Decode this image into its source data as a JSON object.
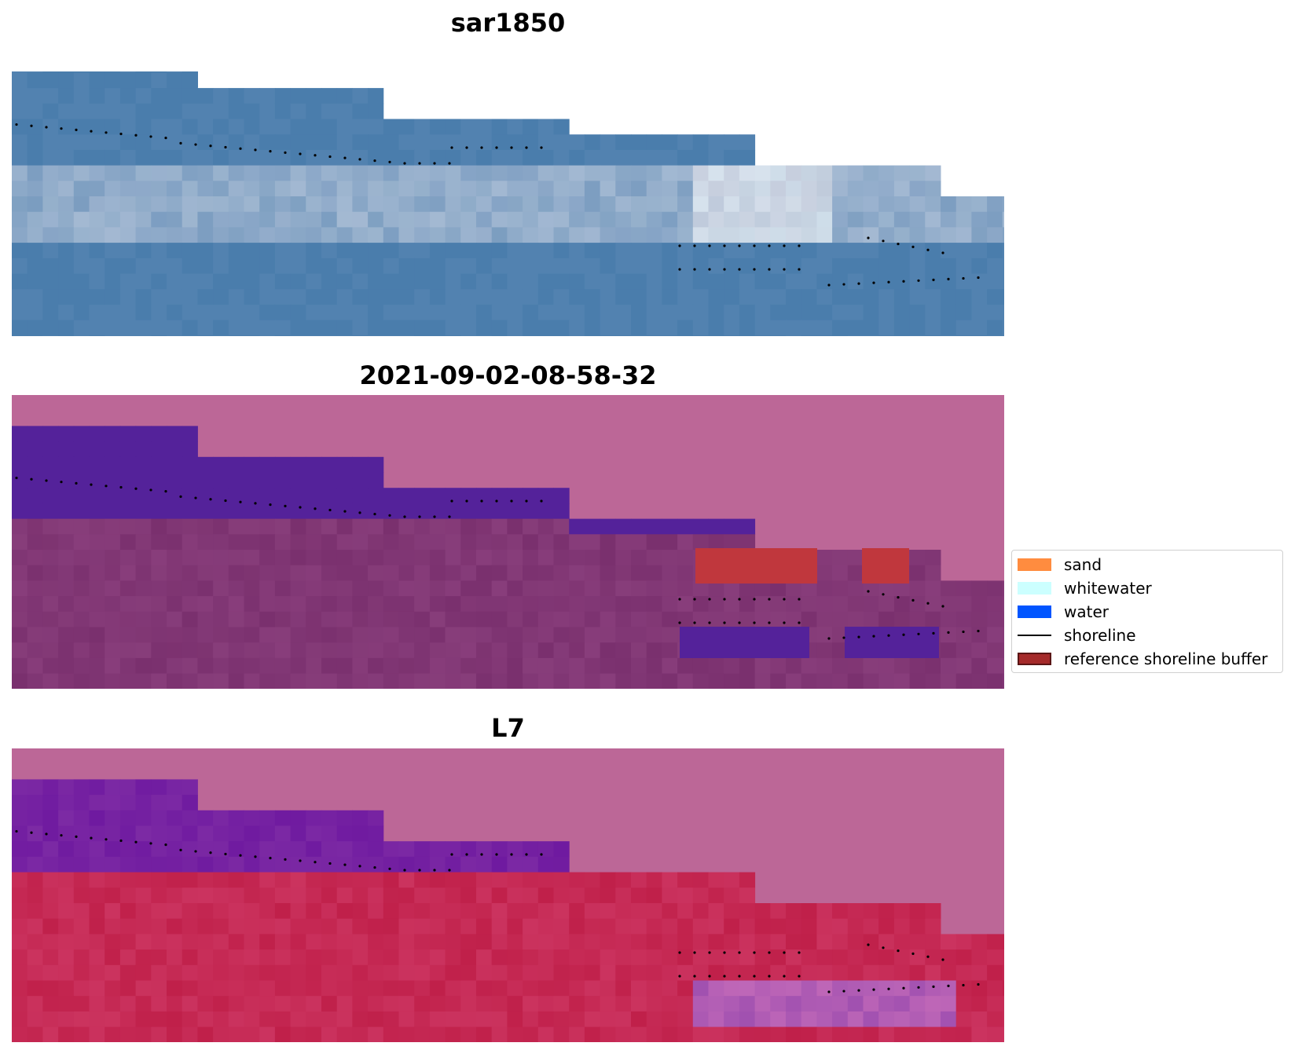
{
  "panels": [
    {
      "title": "sar1850",
      "style": "rgb"
    },
    {
      "title": "2021-09-02-08-58-32",
      "style": "classified"
    },
    {
      "title": "L7",
      "style": "index"
    }
  ],
  "legend": {
    "items": [
      {
        "label": "sand",
        "color": "#ff8c3f",
        "kind": "patch"
      },
      {
        "label": "whitewater",
        "color": "#ccffff",
        "kind": "patch"
      },
      {
        "label": "water",
        "color": "#0055ff",
        "kind": "patch"
      },
      {
        "label": "shoreline",
        "color": "#000000",
        "kind": "line"
      },
      {
        "label": "reference shoreline buffer",
        "color": "#a52a2a",
        "kind": "patch"
      }
    ]
  },
  "colors": {
    "nodata": "#bc6797",
    "sea_blue": "#4d7fad",
    "water_class": "#54229a",
    "buffer": "#c0373d",
    "land_magenta": "#7a306e",
    "index_red": "#c0204a",
    "index_purple": "#6f1aa0"
  }
}
